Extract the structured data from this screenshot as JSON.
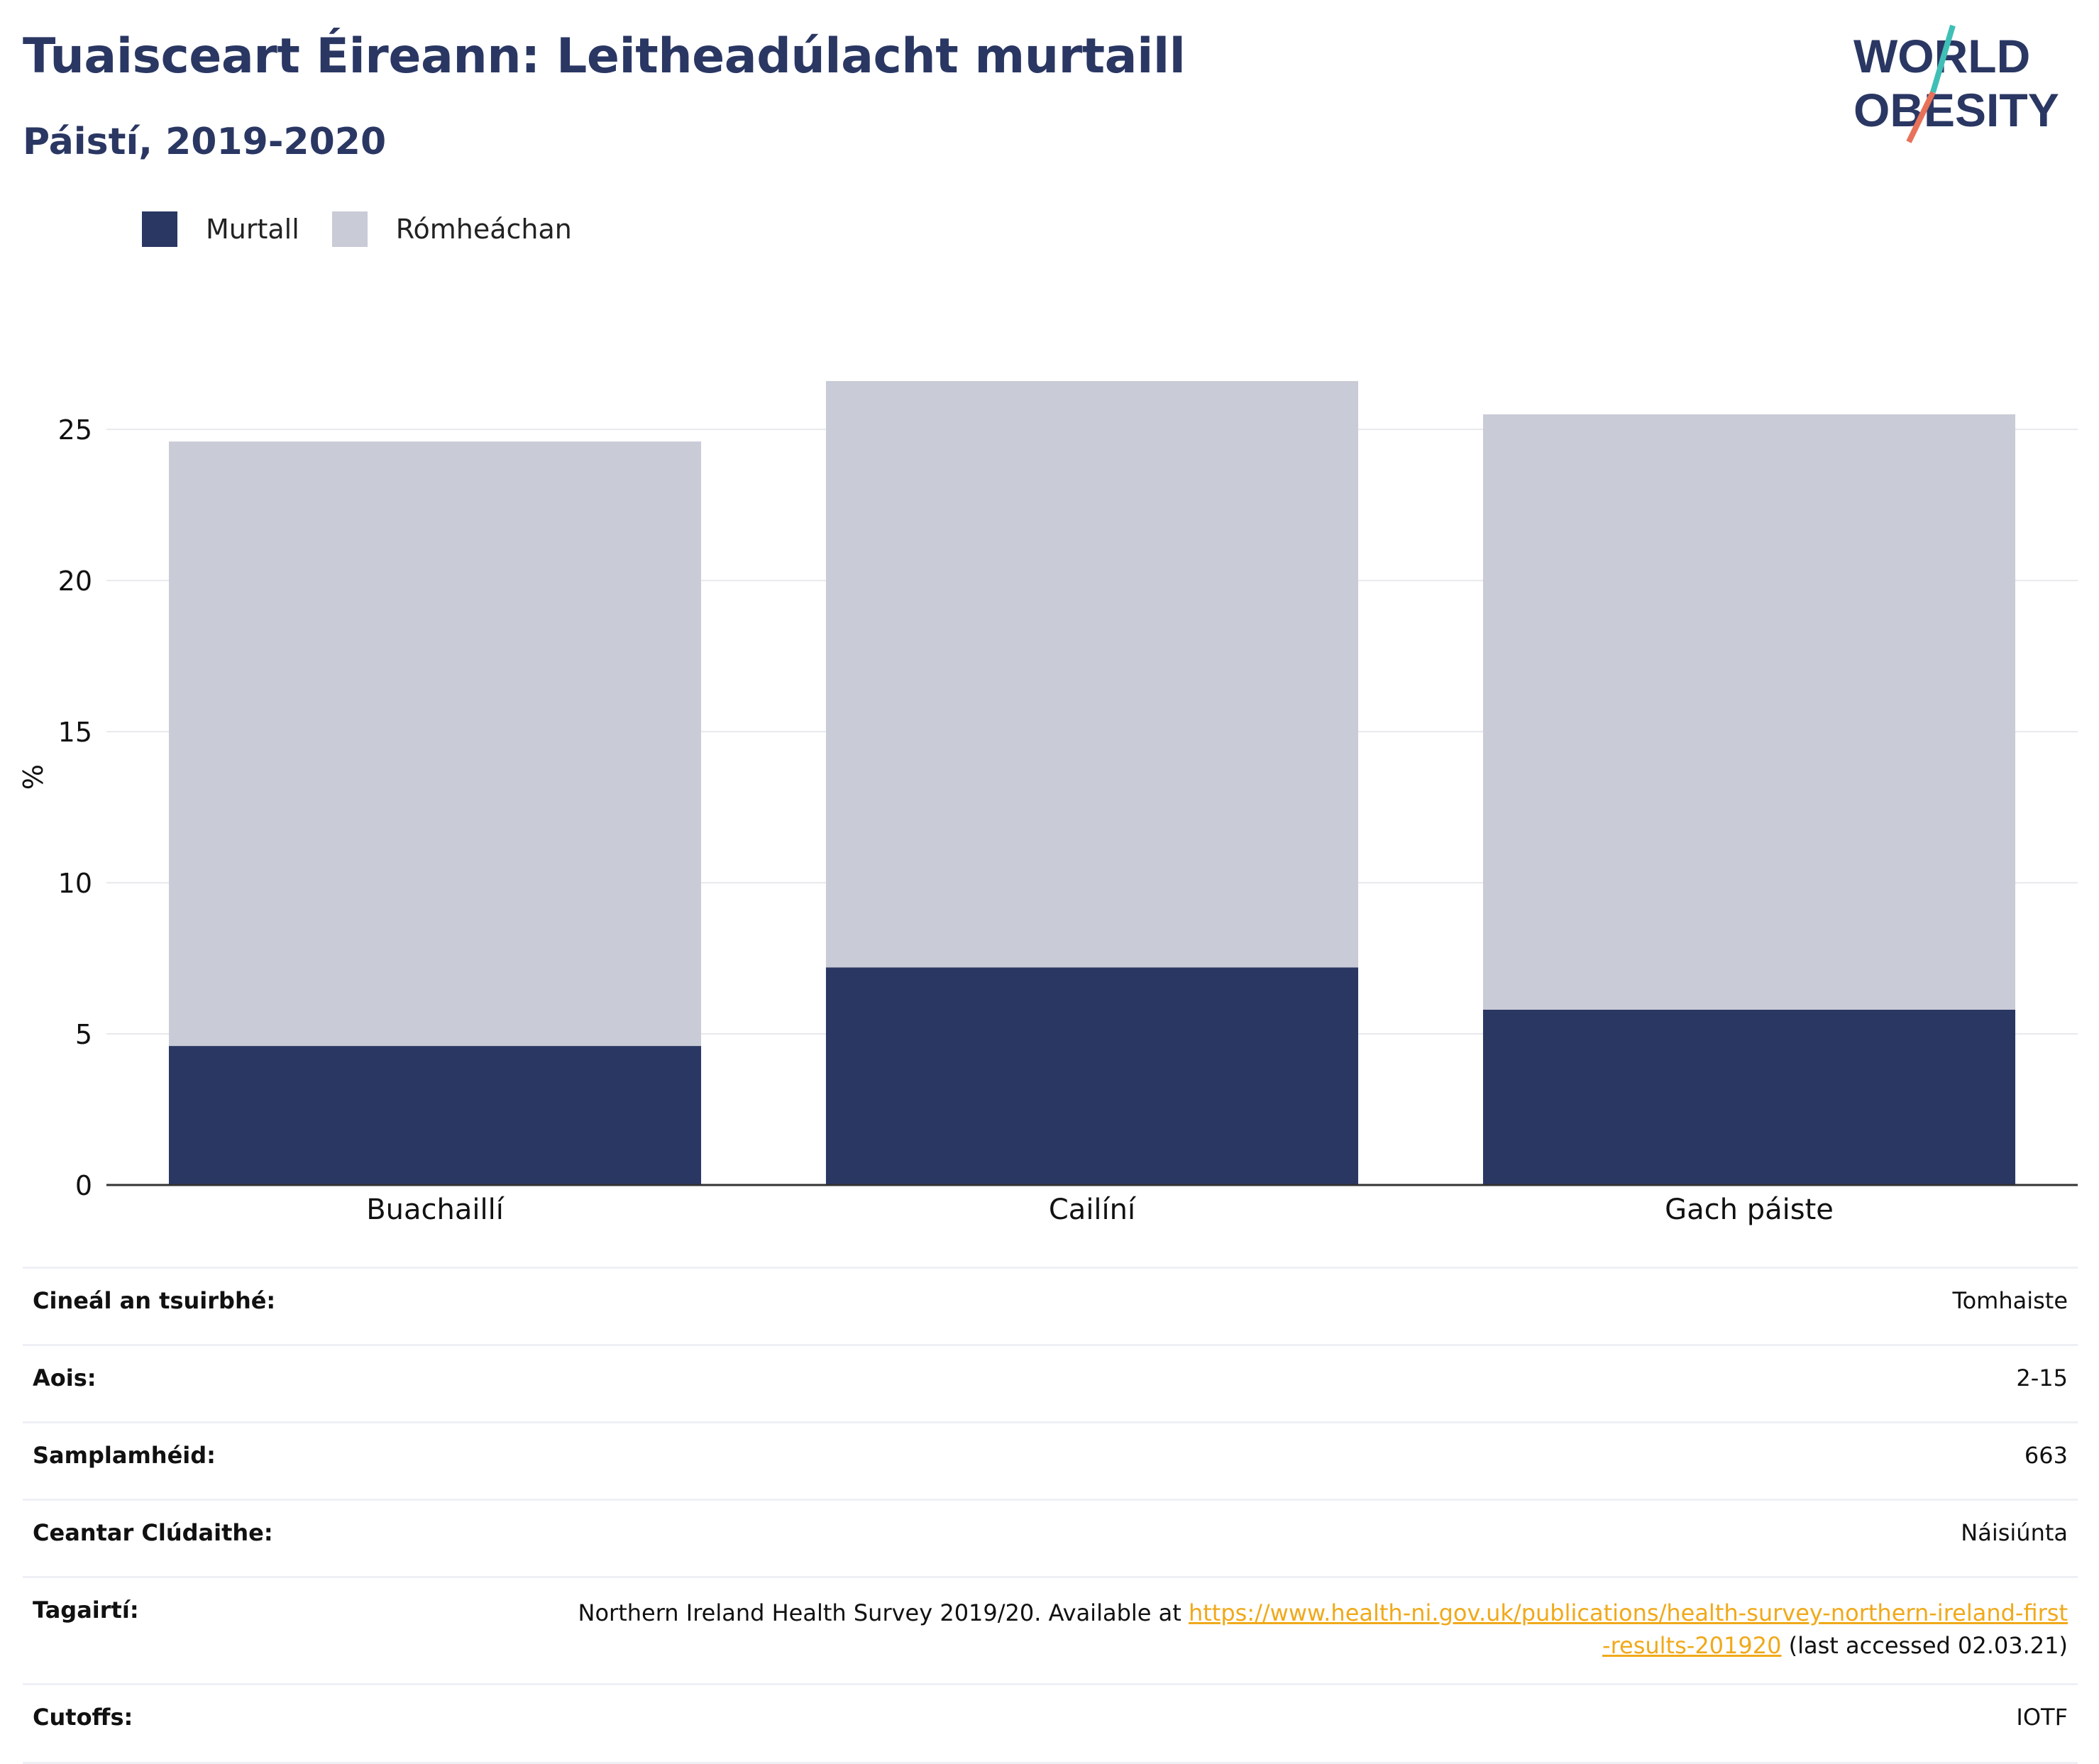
{
  "header": {
    "title": "Tuaisceart Éireann: Leitheadúlacht murtaill",
    "subtitle": "Páistí, 2019-2020"
  },
  "logo": {
    "line1": "WORLD",
    "line2": "OBESITY"
  },
  "colors": {
    "obesity": "#2a3763",
    "overweight": "#c9cbd6",
    "title": "#2a3763",
    "link": "#f0a91a"
  },
  "chart_data": {
    "type": "bar",
    "stacked": true,
    "categories": [
      "Buachaillí",
      "Cailíní",
      "Gach páiste"
    ],
    "series": [
      {
        "name": "Murtall",
        "values": [
          4.6,
          7.2,
          5.8
        ],
        "color": "#2a3763"
      },
      {
        "name": "Rómheáchan",
        "values": [
          20.0,
          19.4,
          19.7
        ],
        "color": "#c9cbd6"
      }
    ],
    "ylabel": "%",
    "xlabel": "",
    "ylim": [
      0,
      27
    ],
    "yticks": [
      0,
      5,
      10,
      15,
      20,
      25
    ],
    "grid": true,
    "legend_position": "top-left"
  },
  "info": {
    "survey_type_label": "Cineál an tsuirbhé:",
    "survey_type_value": "Tomhaiste",
    "age_label": "Aois:",
    "age_value": "2-15",
    "sample_label": "Samplamhéid:",
    "sample_value": "663",
    "area_label": "Ceantar Clúdaithe:",
    "area_value": "Náisiúnta",
    "refs_label": "Tagairtí:",
    "refs_text_before": "Northern Ireland Health Survey 2019/20. Available at ",
    "refs_link": "https://www.health-ni.gov.uk/publications/health-survey-northern-ireland-first-results-201920",
    "refs_text_after": " (last accessed 02.03.21)",
    "cutoffs_label": "Cutoffs:",
    "cutoffs_value": "IOTF"
  }
}
